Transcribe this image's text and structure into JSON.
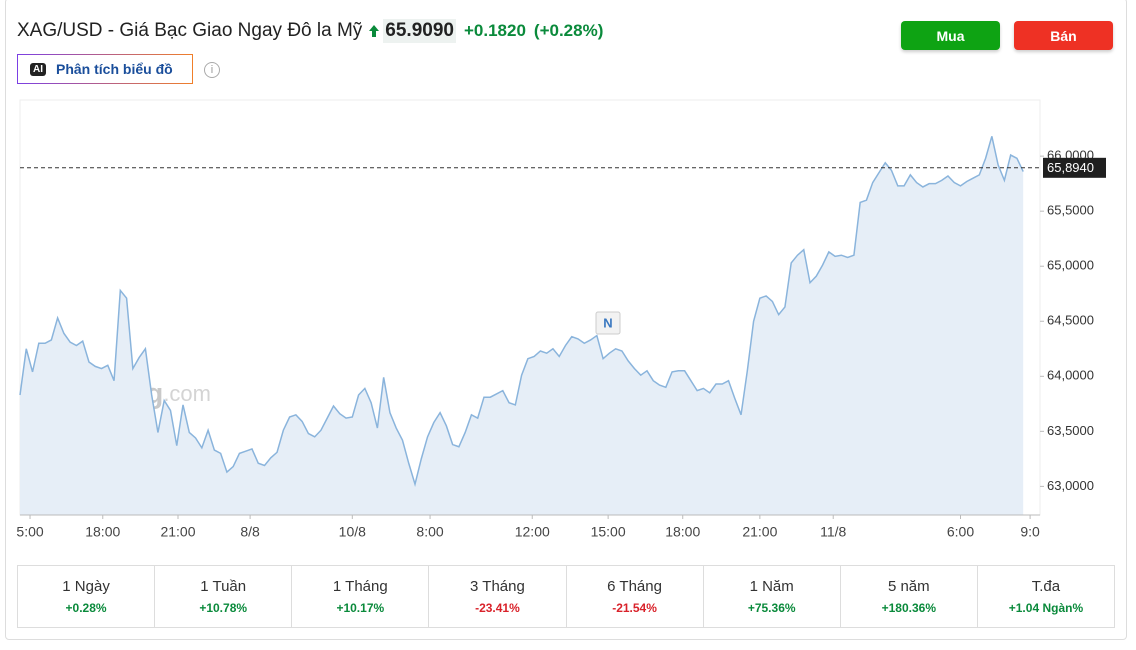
{
  "header": {
    "title": "XAG/USD - Giá Bạc Giao Ngay Đô la Mỹ",
    "price": "65.9090",
    "change": "+0.1820",
    "change_percent": "(+0.28%)",
    "ai_badge": "AI",
    "analysis_button": "Phân tích biểu đồ"
  },
  "buttons": {
    "buy": "Mua",
    "sell": "Bán"
  },
  "chart_data": {
    "type": "area",
    "values": [
      63.83,
      64.25,
      64.04,
      64.3,
      64.3,
      64.33,
      64.53,
      64.39,
      64.31,
      64.28,
      64.32,
      64.13,
      64.09,
      64.07,
      64.1,
      63.96,
      64.78,
      64.71,
      64.07,
      64.17,
      64.25,
      63.83,
      63.49,
      63.78,
      63.69,
      63.37,
      63.74,
      63.49,
      63.44,
      63.35,
      63.51,
      63.33,
      63.3,
      63.13,
      63.18,
      63.3,
      63.32,
      63.34,
      63.21,
      63.19,
      63.26,
      63.31,
      63.51,
      63.63,
      63.65,
      63.59,
      63.48,
      63.45,
      63.51,
      63.62,
      63.73,
      63.66,
      63.62,
      63.63,
      63.83,
      63.89,
      63.76,
      63.53,
      63.99,
      63.67,
      63.53,
      63.42,
      63.21,
      63.02,
      63.25,
      63.45,
      63.58,
      63.67,
      63.55,
      63.38,
      63.36,
      63.49,
      63.65,
      63.62,
      63.81,
      63.81,
      63.84,
      63.87,
      63.76,
      63.74,
      64.01,
      64.16,
      64.18,
      64.23,
      64.21,
      64.25,
      64.18,
      64.28,
      64.36,
      64.34,
      64.3,
      64.33,
      64.37,
      64.16,
      64.21,
      64.25,
      64.23,
      64.14,
      64.07,
      64.01,
      64.05,
      63.96,
      63.92,
      63.9,
      64.04,
      64.05,
      64.05,
      63.96,
      63.87,
      63.89,
      63.85,
      63.93,
      63.93,
      63.96,
      63.8,
      63.65,
      64.05,
      64.5,
      64.71,
      64.73,
      64.68,
      64.56,
      64.63,
      65.03,
      65.1,
      65.15,
      64.85,
      64.91,
      65.01,
      65.13,
      65.09,
      65.1,
      65.08,
      65.1,
      65.58,
      65.6,
      65.76,
      65.85,
      65.94,
      65.87,
      65.73,
      65.73,
      65.83,
      65.76,
      65.72,
      65.75,
      65.75,
      65.78,
      65.82,
      65.76,
      65.73,
      65.77,
      65.8,
      65.83,
      65.98,
      66.18,
      65.92,
      65.78,
      66.01,
      65.98,
      65.86
    ],
    "color": "#8ab4dc",
    "fill": "#e6eef7",
    "ylim": [
      62.74,
      66.51
    ],
    "yticks": [
      {
        "value": 63,
        "label": "63,0000"
      },
      {
        "value": 63.5,
        "label": "63,5000"
      },
      {
        "value": 64,
        "label": "64,0000"
      },
      {
        "value": 64.5,
        "label": "64,5000"
      },
      {
        "value": 65,
        "label": "65,0000"
      },
      {
        "value": 65.5,
        "label": "65,5000"
      },
      {
        "value": 66,
        "label": "66,0000"
      }
    ],
    "xticks": [
      {
        "value": 1.6,
        "label": "5:00"
      },
      {
        "value": 13.2,
        "label": "18:00"
      },
      {
        "value": 25.2,
        "label": "21:00"
      },
      {
        "value": 36.7,
        "label": "8/8"
      },
      {
        "value": 53,
        "label": "10/8"
      },
      {
        "value": 65.4,
        "label": "8:00"
      },
      {
        "value": 81.7,
        "label": "12:00"
      },
      {
        "value": 93.8,
        "label": "15:00"
      },
      {
        "value": 105.7,
        "label": "18:00"
      },
      {
        "value": 118,
        "label": "21:00"
      },
      {
        "value": 129.7,
        "label": "11/8"
      },
      {
        "value": 150,
        "label": "6:00"
      },
      {
        "value": 161.1,
        "label": "9:0"
      }
    ],
    "last_price": {
      "value": 65.894,
      "label": "65,8940"
    },
    "annotation": "N",
    "watermark": {
      "brand": "Investing",
      "suffix": ".com"
    }
  },
  "performance": [
    {
      "period": "1 Ngày",
      "change": "+0.28%"
    },
    {
      "period": "1 Tuần",
      "change": "+10.78%"
    },
    {
      "period": "1 Tháng",
      "change": "+10.17%"
    },
    {
      "period": "3 Tháng",
      "change": "-23.41%"
    },
    {
      "period": "6 Tháng",
      "change": "-21.54%"
    },
    {
      "period": "1 Năm",
      "change": "+75.36%"
    },
    {
      "period": "5 năm",
      "change": "+180.36%"
    },
    {
      "period": "T.đa",
      "change": "+1.04 Ngàn%"
    }
  ]
}
